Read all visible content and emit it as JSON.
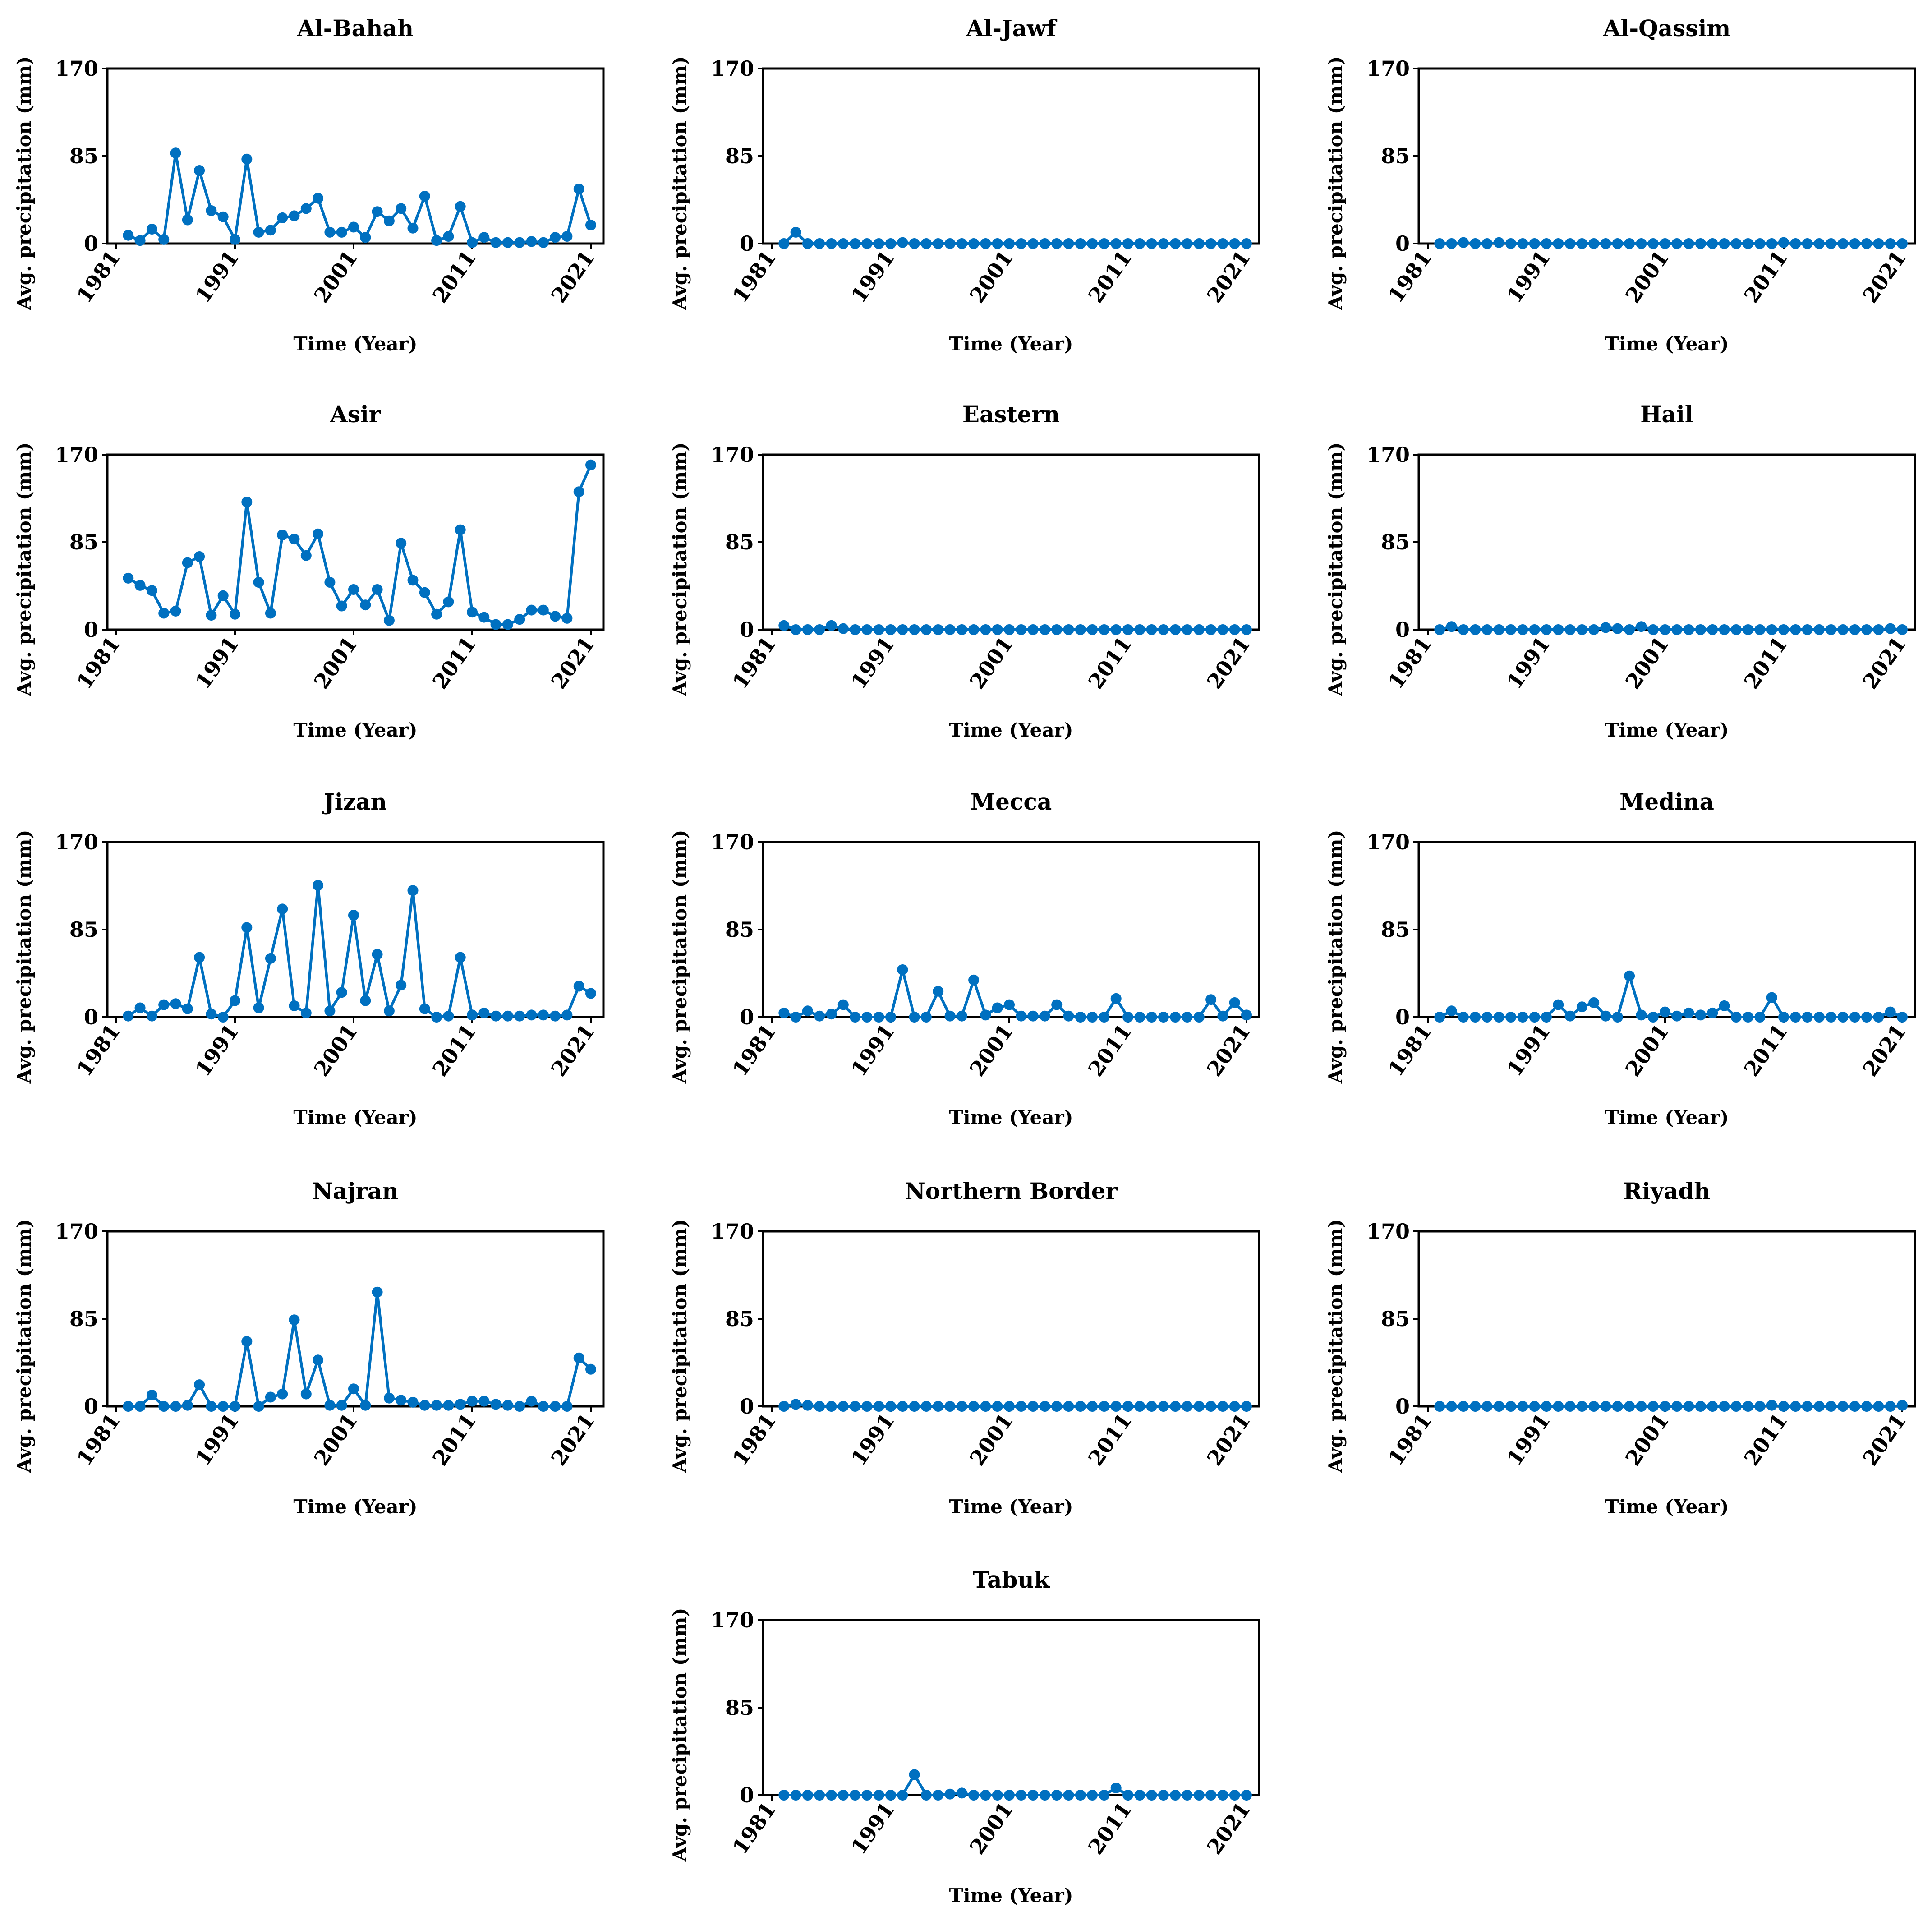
{
  "colors": {
    "series": "#0070c0"
  },
  "chart_data": [
    {
      "type": "line",
      "title": "Al-Bahah",
      "xlabel": "Time (Year)",
      "ylabel": "Avg. precipitation (mm)",
      "xlim": [
        1981,
        2021
      ],
      "ylim": [
        0,
        170
      ],
      "x_ticks": [
        1981,
        1991,
        2001,
        2011,
        2021
      ],
      "y_ticks": [
        0,
        85,
        170
      ],
      "grid": false,
      "x": [
        1982,
        1983,
        1984,
        1985,
        1986,
        1987,
        1988,
        1989,
        1990,
        1991,
        1992,
        1993,
        1994,
        1995,
        1996,
        1997,
        1998,
        1999,
        2000,
        2001,
        2002,
        2003,
        2004,
        2005,
        2006,
        2007,
        2008,
        2009,
        2010,
        2011,
        2012,
        2013,
        2014,
        2015,
        2016,
        2017,
        2018,
        2019,
        2020,
        2021
      ],
      "values": [
        8,
        3,
        14,
        4,
        88,
        23,
        71,
        32,
        26,
        4,
        82,
        11,
        13,
        25,
        27,
        34,
        44,
        11,
        11,
        16,
        6,
        31,
        22,
        34,
        15,
        46,
        3,
        7,
        36,
        1,
        6,
        1,
        1,
        1,
        2,
        1,
        6,
        7,
        53,
        18
      ]
    },
    {
      "type": "line",
      "title": "Al-Jawf",
      "xlabel": "Time (Year)",
      "ylabel": "Avg. precipitation (mm)",
      "xlim": [
        1981,
        2021
      ],
      "ylim": [
        0,
        170
      ],
      "x_ticks": [
        1981,
        1991,
        2001,
        2011,
        2021
      ],
      "y_ticks": [
        0,
        85,
        170
      ],
      "grid": false,
      "x": [
        1982,
        1983,
        1984,
        1985,
        1986,
        1987,
        1988,
        1989,
        1990,
        1991,
        1992,
        1993,
        1994,
        1995,
        1996,
        1997,
        1998,
        1999,
        2000,
        2001,
        2002,
        2003,
        2004,
        2005,
        2006,
        2007,
        2008,
        2009,
        2010,
        2011,
        2012,
        2013,
        2014,
        2015,
        2016,
        2017,
        2018,
        2019,
        2020,
        2021
      ],
      "values": [
        0,
        11,
        0,
        0,
        0,
        0,
        0,
        0,
        0,
        0,
        1,
        0,
        0,
        0,
        0,
        0,
        0,
        0,
        0,
        0,
        0,
        0,
        0,
        0,
        0,
        0,
        0,
        0,
        0,
        0,
        0,
        0,
        0,
        0,
        0,
        0,
        0,
        0,
        0,
        0
      ]
    },
    {
      "type": "line",
      "title": "Al-Qassim",
      "xlabel": "Time (Year)",
      "ylabel": "Avg. precipitation (mm)",
      "xlim": [
        1981,
        2021
      ],
      "ylim": [
        0,
        170
      ],
      "x_ticks": [
        1981,
        1991,
        2001,
        2011,
        2021
      ],
      "y_ticks": [
        0,
        85,
        170
      ],
      "grid": false,
      "x": [
        1982,
        1983,
        1984,
        1985,
        1986,
        1987,
        1988,
        1989,
        1990,
        1991,
        1992,
        1993,
        1994,
        1995,
        1996,
        1997,
        1998,
        1999,
        2000,
        2001,
        2002,
        2003,
        2004,
        2005,
        2006,
        2007,
        2008,
        2009,
        2010,
        2011,
        2012,
        2013,
        2014,
        2015,
        2016,
        2017,
        2018,
        2019,
        2020,
        2021
      ],
      "values": [
        0,
        0,
        1,
        0,
        0,
        1,
        0,
        0,
        0,
        0,
        0,
        0,
        0,
        0,
        0,
        0,
        0,
        0,
        0,
        0,
        0,
        0,
        0,
        0,
        0,
        0,
        0,
        0,
        0,
        1,
        0,
        0,
        0,
        0,
        0,
        0,
        0,
        0,
        0,
        0
      ]
    },
    {
      "type": "line",
      "title": "Asir",
      "xlabel": "Time (Year)",
      "ylabel": "Avg. precipitation (mm)",
      "xlim": [
        1981,
        2021
      ],
      "ylim": [
        0,
        170
      ],
      "x_ticks": [
        1981,
        1991,
        2001,
        2011,
        2021
      ],
      "y_ticks": [
        0,
        85,
        170
      ],
      "grid": false,
      "x": [
        1982,
        1983,
        1984,
        1985,
        1986,
        1987,
        1988,
        1989,
        1990,
        1991,
        1992,
        1993,
        1994,
        1995,
        1996,
        1997,
        1998,
        1999,
        2000,
        2001,
        2002,
        2003,
        2004,
        2005,
        2006,
        2007,
        2008,
        2009,
        2010,
        2011,
        2012,
        2013,
        2014,
        2015,
        2016,
        2017,
        2018,
        2019,
        2020,
        2021
      ],
      "values": [
        50,
        43,
        38,
        16,
        18,
        65,
        71,
        14,
        33,
        15,
        124,
        46,
        16,
        92,
        88,
        72,
        93,
        46,
        23,
        39,
        24,
        39,
        9,
        84,
        48,
        36,
        15,
        27,
        97,
        17,
        12,
        5,
        5,
        10,
        19,
        19,
        13,
        11,
        134,
        160
      ]
    },
    {
      "type": "line",
      "title": "Eastern",
      "xlabel": "Time (Year)",
      "ylabel": "Avg. precipitation (mm)",
      "xlim": [
        1981,
        2021
      ],
      "ylim": [
        0,
        170
      ],
      "x_ticks": [
        1981,
        1991,
        2001,
        2011,
        2021
      ],
      "y_ticks": [
        0,
        85,
        170
      ],
      "grid": false,
      "x": [
        1982,
        1983,
        1984,
        1985,
        1986,
        1987,
        1988,
        1989,
        1990,
        1991,
        1992,
        1993,
        1994,
        1995,
        1996,
        1997,
        1998,
        1999,
        2000,
        2001,
        2002,
        2003,
        2004,
        2005,
        2006,
        2007,
        2008,
        2009,
        2010,
        2011,
        2012,
        2013,
        2014,
        2015,
        2016,
        2017,
        2018,
        2019,
        2020,
        2021
      ],
      "values": [
        4,
        0,
        0,
        0,
        4,
        1,
        0,
        0,
        0,
        0,
        0,
        0,
        0,
        0,
        0,
        0,
        0,
        0,
        0,
        0,
        0,
        0,
        0,
        0,
        0,
        0,
        0,
        0,
        0,
        0,
        0,
        0,
        0,
        0,
        0,
        0,
        0,
        0,
        0,
        0
      ]
    },
    {
      "type": "line",
      "title": "Hail",
      "xlabel": "Time (Year)",
      "ylabel": "Avg. precipitation (mm)",
      "xlim": [
        1981,
        2021
      ],
      "ylim": [
        0,
        170
      ],
      "x_ticks": [
        1981,
        1991,
        2001,
        2011,
        2021
      ],
      "y_ticks": [
        0,
        85,
        170
      ],
      "grid": false,
      "x": [
        1982,
        1983,
        1984,
        1985,
        1986,
        1987,
        1988,
        1989,
        1990,
        1991,
        1992,
        1993,
        1994,
        1995,
        1996,
        1997,
        1998,
        1999,
        2000,
        2001,
        2002,
        2003,
        2004,
        2005,
        2006,
        2007,
        2008,
        2009,
        2010,
        2011,
        2012,
        2013,
        2014,
        2015,
        2016,
        2017,
        2018,
        2019,
        2020,
        2021
      ],
      "values": [
        0,
        3,
        0,
        0,
        0,
        0,
        0,
        0,
        0,
        0,
        0,
        0,
        0,
        0,
        2,
        1,
        0,
        3,
        0,
        0,
        0,
        0,
        0,
        0,
        0,
        0,
        0,
        0,
        0,
        0,
        0,
        0,
        0,
        0,
        0,
        0,
        0,
        0,
        1,
        0
      ]
    },
    {
      "type": "line",
      "title": "Jizan",
      "xlabel": "Time (Year)",
      "ylabel": "Avg. precipitation (mm)",
      "xlim": [
        1981,
        2021
      ],
      "ylim": [
        0,
        170
      ],
      "x_ticks": [
        1981,
        1991,
        2001,
        2011,
        2021
      ],
      "y_ticks": [
        0,
        85,
        170
      ],
      "grid": false,
      "x": [
        1982,
        1983,
        1984,
        1985,
        1986,
        1987,
        1988,
        1989,
        1990,
        1991,
        1992,
        1993,
        1994,
        1995,
        1996,
        1997,
        1998,
        1999,
        2000,
        2001,
        2002,
        2003,
        2004,
        2005,
        2006,
        2007,
        2008,
        2009,
        2010,
        2011,
        2012,
        2013,
        2014,
        2015,
        2016,
        2017,
        2018,
        2019,
        2020,
        2021
      ],
      "values": [
        1,
        9,
        1,
        12,
        13,
        8,
        58,
        3,
        0,
        16,
        87,
        9,
        57,
        105,
        11,
        4,
        128,
        6,
        24,
        99,
        16,
        61,
        6,
        31,
        123,
        8,
        0,
        1,
        58,
        2,
        4,
        1,
        1,
        1,
        2,
        2,
        1,
        2,
        30,
        23
      ]
    },
    {
      "type": "line",
      "title": "Mecca",
      "xlabel": "Time (Year)",
      "ylabel": "Avg. precipitation (mm)",
      "xlim": [
        1981,
        2021
      ],
      "ylim": [
        0,
        170
      ],
      "x_ticks": [
        1981,
        1991,
        2001,
        2011,
        2021
      ],
      "y_ticks": [
        0,
        85,
        170
      ],
      "grid": false,
      "x": [
        1982,
        1983,
        1984,
        1985,
        1986,
        1987,
        1988,
        1989,
        1990,
        1991,
        1992,
        1993,
        1994,
        1995,
        1996,
        1997,
        1998,
        1999,
        2000,
        2001,
        2002,
        2003,
        2004,
        2005,
        2006,
        2007,
        2008,
        2009,
        2010,
        2011,
        2012,
        2013,
        2014,
        2015,
        2016,
        2017,
        2018,
        2019,
        2020,
        2021
      ],
      "values": [
        4,
        0,
        6,
        1,
        3,
        12,
        0,
        0,
        0,
        0,
        46,
        0,
        0,
        25,
        1,
        1,
        36,
        2,
        9,
        12,
        1,
        1,
        1,
        12,
        1,
        0,
        0,
        0,
        18,
        0,
        0,
        0,
        0,
        0,
        0,
        0,
        17,
        1,
        14,
        2
      ]
    },
    {
      "type": "line",
      "title": "Medina",
      "xlabel": "Time (Year)",
      "ylabel": "Avg. precipitation (mm)",
      "xlim": [
        1981,
        2021
      ],
      "ylim": [
        0,
        170
      ],
      "x_ticks": [
        1981,
        1991,
        2001,
        2011,
        2021
      ],
      "y_ticks": [
        0,
        85,
        170
      ],
      "grid": false,
      "x": [
        1982,
        1983,
        1984,
        1985,
        1986,
        1987,
        1988,
        1989,
        1990,
        1991,
        1992,
        1993,
        1994,
        1995,
        1996,
        1997,
        1998,
        1999,
        2000,
        2001,
        2002,
        2003,
        2004,
        2005,
        2006,
        2007,
        2008,
        2009,
        2010,
        2011,
        2012,
        2013,
        2014,
        2015,
        2016,
        2017,
        2018,
        2019,
        2020,
        2021
      ],
      "values": [
        0,
        6,
        0,
        0,
        0,
        0,
        0,
        0,
        0,
        0,
        12,
        1,
        10,
        14,
        1,
        0,
        40,
        2,
        0,
        5,
        1,
        4,
        2,
        4,
        11,
        0,
        0,
        0,
        19,
        0,
        0,
        0,
        0,
        0,
        0,
        0,
        0,
        0,
        5,
        0
      ]
    },
    {
      "type": "line",
      "title": "Najran",
      "xlabel": "Time (Year)",
      "ylabel": "Avg. precipitation (mm)",
      "xlim": [
        1981,
        2021
      ],
      "ylim": [
        0,
        170
      ],
      "x_ticks": [
        1981,
        1991,
        2001,
        2011,
        2021
      ],
      "y_ticks": [
        0,
        85,
        170
      ],
      "grid": false,
      "x": [
        1982,
        1983,
        1984,
        1985,
        1986,
        1987,
        1988,
        1989,
        1990,
        1991,
        1992,
        1993,
        1994,
        1995,
        1996,
        1997,
        1998,
        1999,
        2000,
        2001,
        2002,
        2003,
        2004,
        2005,
        2006,
        2007,
        2008,
        2009,
        2010,
        2011,
        2012,
        2013,
        2014,
        2015,
        2016,
        2017,
        2018,
        2019,
        2020,
        2021
      ],
      "values": [
        0,
        0,
        11,
        0,
        0,
        1,
        21,
        0,
        0,
        0,
        63,
        0,
        9,
        12,
        84,
        12,
        45,
        1,
        1,
        17,
        1,
        111,
        8,
        6,
        4,
        1,
        1,
        1,
        2,
        5,
        5,
        2,
        1,
        0,
        5,
        0,
        0,
        0,
        47,
        36
      ]
    },
    {
      "type": "line",
      "title": "Northern Border",
      "xlabel": "Time (Year)",
      "ylabel": "Avg. precipitation (mm)",
      "xlim": [
        1981,
        2021
      ],
      "ylim": [
        0,
        170
      ],
      "x_ticks": [
        1981,
        1991,
        2001,
        2011,
        2021
      ],
      "y_ticks": [
        0,
        85,
        170
      ],
      "grid": false,
      "x": [
        1982,
        1983,
        1984,
        1985,
        1986,
        1987,
        1988,
        1989,
        1990,
        1991,
        1992,
        1993,
        1994,
        1995,
        1996,
        1997,
        1998,
        1999,
        2000,
        2001,
        2002,
        2003,
        2004,
        2005,
        2006,
        2007,
        2008,
        2009,
        2010,
        2011,
        2012,
        2013,
        2014,
        2015,
        2016,
        2017,
        2018,
        2019,
        2020,
        2021
      ],
      "values": [
        0,
        2,
        1,
        0,
        0,
        0,
        0,
        0,
        0,
        0,
        0,
        0,
        0,
        0,
        0,
        0,
        0,
        0,
        0,
        0,
        0,
        0,
        0,
        0,
        0,
        0,
        0,
        0,
        0,
        0,
        0,
        0,
        0,
        0,
        0,
        0,
        0,
        0,
        0,
        0
      ]
    },
    {
      "type": "line",
      "title": "Riyadh",
      "xlabel": "Time (Year)",
      "ylabel": "Avg. precipitation (mm)",
      "xlim": [
        1981,
        2021
      ],
      "ylim": [
        0,
        170
      ],
      "x_ticks": [
        1981,
        1991,
        2001,
        2011,
        2021
      ],
      "y_ticks": [
        0,
        85,
        170
      ],
      "grid": false,
      "x": [
        1982,
        1983,
        1984,
        1985,
        1986,
        1987,
        1988,
        1989,
        1990,
        1991,
        1992,
        1993,
        1994,
        1995,
        1996,
        1997,
        1998,
        1999,
        2000,
        2001,
        2002,
        2003,
        2004,
        2005,
        2006,
        2007,
        2008,
        2009,
        2010,
        2011,
        2012,
        2013,
        2014,
        2015,
        2016,
        2017,
        2018,
        2019,
        2020,
        2021
      ],
      "values": [
        0,
        0,
        0,
        0,
        0,
        0,
        0,
        0,
        0,
        0,
        0,
        0,
        0,
        0,
        0,
        0,
        0,
        0,
        0,
        0,
        0,
        0,
        0,
        0,
        0,
        0,
        0,
        0,
        1,
        0,
        0,
        0,
        0,
        0,
        0,
        0,
        0,
        0,
        0,
        1
      ]
    },
    {
      "type": "line",
      "title": "Tabuk",
      "xlabel": "Time (Year)",
      "ylabel": "Avg. precipitation (mm)",
      "xlim": [
        1981,
        2021
      ],
      "ylim": [
        0,
        170
      ],
      "x_ticks": [
        1981,
        1991,
        2001,
        2011,
        2021
      ],
      "y_ticks": [
        0,
        85,
        170
      ],
      "grid": false,
      "x": [
        1982,
        1983,
        1984,
        1985,
        1986,
        1987,
        1988,
        1989,
        1990,
        1991,
        1992,
        1993,
        1994,
        1995,
        1996,
        1997,
        1998,
        1999,
        2000,
        2001,
        2002,
        2003,
        2004,
        2005,
        2006,
        2007,
        2008,
        2009,
        2010,
        2011,
        2012,
        2013,
        2014,
        2015,
        2016,
        2017,
        2018,
        2019,
        2020,
        2021
      ],
      "values": [
        0,
        0,
        0,
        0,
        0,
        0,
        0,
        0,
        0,
        0,
        0,
        20,
        0,
        0,
        1,
        2,
        0,
        0,
        0,
        0,
        0,
        0,
        0,
        0,
        0,
        0,
        0,
        0,
        7,
        0,
        0,
        0,
        0,
        0,
        0,
        0,
        0,
        0,
        0,
        0
      ]
    }
  ]
}
